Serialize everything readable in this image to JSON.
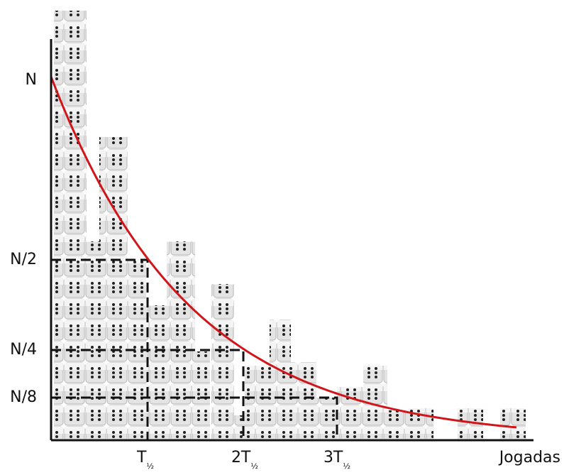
{
  "y_labels": [
    "N",
    "N/2",
    "N/4",
    "N/8"
  ],
  "x_labels": [
    {
      "text": "T",
      "sub": "½"
    },
    {
      "text": "2T",
      "sub": "½"
    },
    {
      "text": "3T",
      "sub": "½"
    }
  ],
  "x_axis_label": "Jogadas"
}
